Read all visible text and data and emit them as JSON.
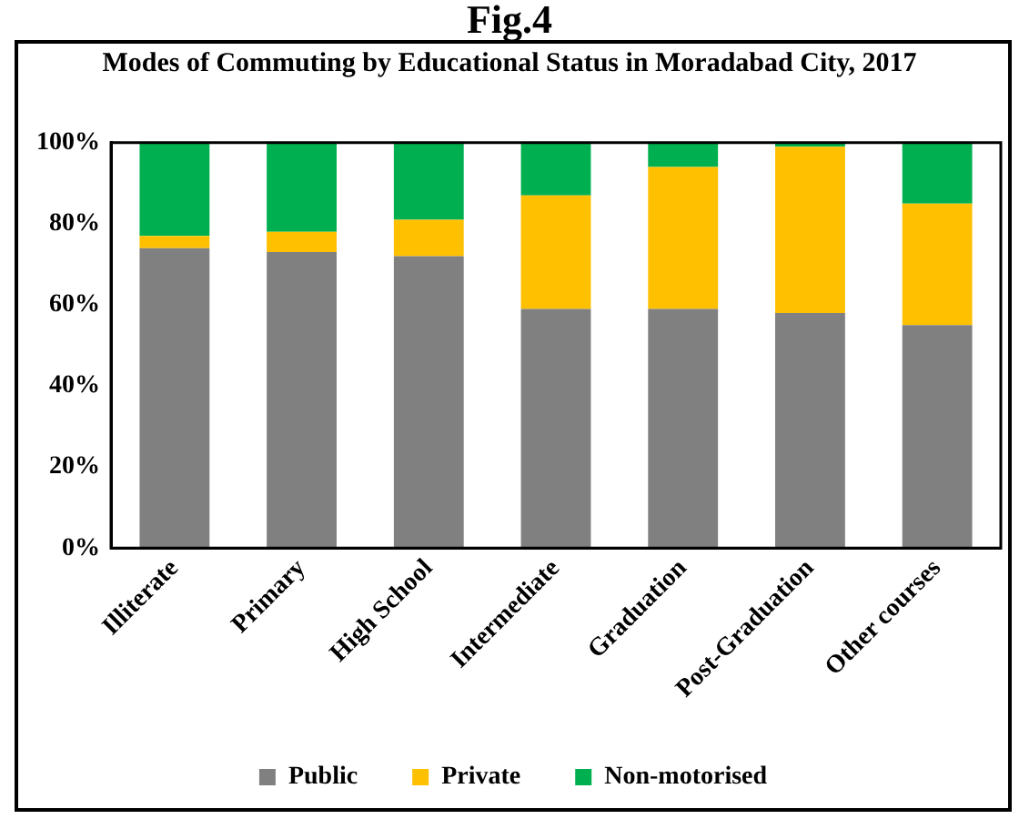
{
  "chart_data": {
    "type": "bar",
    "stacked": true,
    "title": "Modes of Commuting by Educational Status in Moradabad City, 2017",
    "annotations": [
      "Fig.4"
    ],
    "categories": [
      "Illiterate",
      "Primary",
      "High School",
      "Intermediate",
      "Graduation",
      "Post-Graduation",
      "Other courses"
    ],
    "series": [
      {
        "name": "Public",
        "color": "#808080",
        "values": [
          74,
          73,
          72,
          59,
          59,
          58,
          55
        ]
      },
      {
        "name": "Private",
        "color": "#ffc000",
        "values": [
          3,
          5,
          9,
          28,
          35,
          41,
          30
        ]
      },
      {
        "name": "Non-motorised",
        "color": "#00b050",
        "values": [
          23,
          22,
          19,
          13,
          6,
          1,
          15
        ]
      }
    ],
    "ylim": [
      0,
      100
    ],
    "yticks": [
      {
        "value": 0,
        "label": "0%"
      },
      {
        "value": 20,
        "label": "20%"
      },
      {
        "value": 40,
        "label": "40%"
      },
      {
        "value": 60,
        "label": "60%"
      },
      {
        "value": 80,
        "label": "80%"
      },
      {
        "value": 100,
        "label": "100%"
      }
    ],
    "grid": false,
    "legend": "bottom"
  }
}
